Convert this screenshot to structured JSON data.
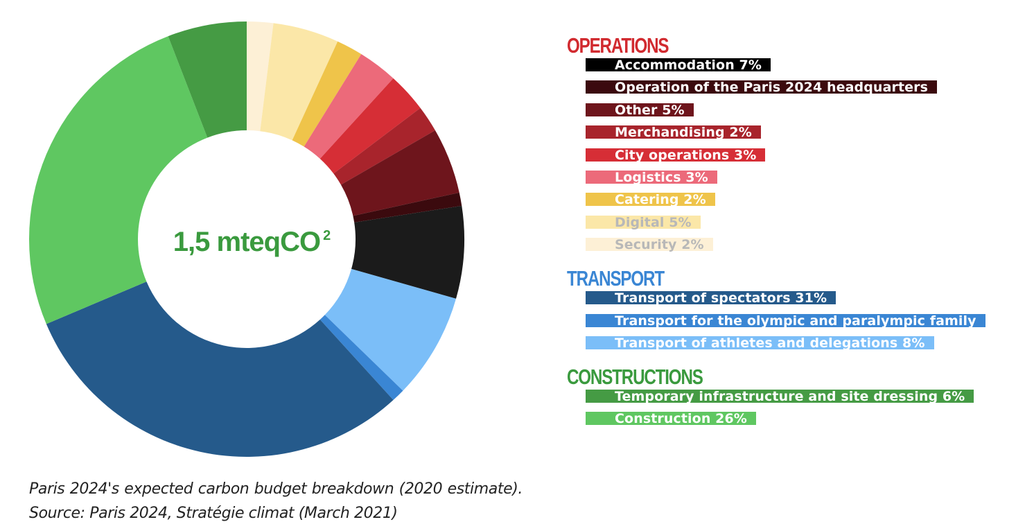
{
  "chart_data": {
    "type": "donut",
    "center_label": "1,5 mteqCO",
    "center_sup": "2",
    "slices": [
      {
        "group": "operations",
        "label": "Security 2%",
        "value": 2,
        "color": "#fdf0d6",
        "faded": true
      },
      {
        "group": "operations",
        "label": "Digital 5%",
        "value": 5,
        "color": "#fbe7a8",
        "faded": true
      },
      {
        "group": "operations",
        "label": "Catering 2%",
        "value": 2,
        "color": "#efc44a"
      },
      {
        "group": "operations",
        "label": "Logistics 3%",
        "value": 3,
        "color": "#ec6a7a"
      },
      {
        "group": "operations",
        "label": "City operations 3%",
        "value": 3,
        "color": "#d62e36"
      },
      {
        "group": "operations",
        "label": "Merchandising 2%",
        "value": 2,
        "color": "#a8242c"
      },
      {
        "group": "operations",
        "label": "Other 5%",
        "value": 5,
        "color": "#6e151c"
      },
      {
        "group": "operations",
        "label": "Operation of the Paris 2024 headquarters",
        "value": 1,
        "color": "#3b0a0e"
      },
      {
        "group": "operations",
        "label": "Accommodation 7%",
        "value": 7,
        "color": "#1b1b1b"
      },
      {
        "group": "transport",
        "label": "Transport of athletes and delegations 8%",
        "value": 8,
        "color": "#7bbef8"
      },
      {
        "group": "transport",
        "label": "Transport for the olympic and paralympic family",
        "value": 1,
        "color": "#3a86d4"
      },
      {
        "group": "transport",
        "label": "Transport of spectators 31%",
        "value": 31,
        "color": "#255a8b"
      },
      {
        "group": "constructions",
        "label": "Construction 26%",
        "value": 26,
        "color": "#5fc761"
      },
      {
        "group": "constructions",
        "label": "Temporary infrastructure and site dressing 6%",
        "value": 6,
        "color": "#459b44"
      }
    ]
  },
  "legend": {
    "groups": [
      {
        "title": "OPERATIONS",
        "color": "#d12a2f",
        "items": [
          {
            "label": "Accommodation 7%",
            "color": "#000000"
          },
          {
            "label": "Operation of the Paris 2024 headquarters",
            "color": "#3b0a0e"
          },
          {
            "label": "Other 5%",
            "color": "#6e151c"
          },
          {
            "label": "Merchandising 2%",
            "color": "#a8242c"
          },
          {
            "label": "City operations 3%",
            "color": "#d62e36"
          },
          {
            "label": "Logistics 3%",
            "color": "#ec6a7a"
          },
          {
            "label": "Catering 2%",
            "color": "#efc44a"
          },
          {
            "label": "Digital 5%",
            "color": "#fbe7a8",
            "faded": true
          },
          {
            "label": "Security 2%",
            "color": "#fdf0d6",
            "faded": true
          }
        ]
      },
      {
        "title": "TRANSPORT",
        "color": "#3a86d4",
        "items": [
          {
            "label": "Transport of spectators 31%",
            "color": "#255a8b"
          },
          {
            "label": "Transport for the olympic and paralympic family",
            "color": "#3a86d4"
          },
          {
            "label": "Transport of athletes and delegations 8%",
            "color": "#7bbef8"
          }
        ]
      },
      {
        "title": "CONSTRUCTIONS",
        "color": "#3a9a3e",
        "items": [
          {
            "label": "Temporary infrastructure and site dressing 6%",
            "color": "#459b44"
          },
          {
            "label": "Construction 26%",
            "color": "#5fc761"
          }
        ]
      }
    ]
  },
  "caption": "Paris 2024's expected carbon budget breakdown (2020 estimate). Source: Paris 2024, Stratégie climat (March 2021)"
}
